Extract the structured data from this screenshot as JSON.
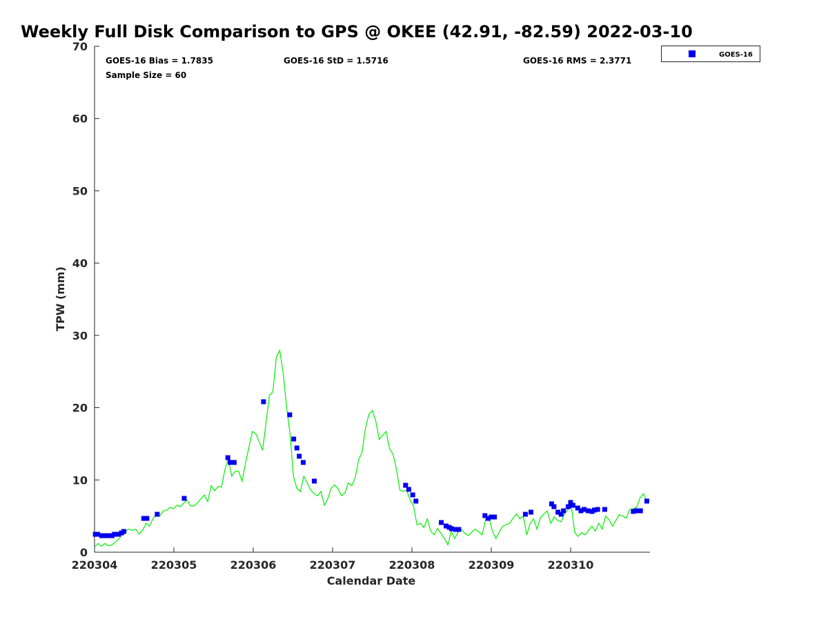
{
  "chart_data": {
    "type": "scatter",
    "title": "Weekly Full Disk Comparison to GPS @ OKEE (42.91, -82.59) 2022-03-10",
    "xlabel": "Calendar Date",
    "ylabel": "TPW (mm)",
    "xlim_days": [
      0,
      7
    ],
    "ylim": [
      0,
      70
    ],
    "x_tick_labels": [
      "220304",
      "220305",
      "220306",
      "220307",
      "220308",
      "220309",
      "220310"
    ],
    "y_ticks": [
      0,
      10,
      20,
      30,
      40,
      50,
      60,
      70
    ],
    "grid": false,
    "legend": {
      "position": "top-right",
      "entries": [
        "GOES-16"
      ]
    },
    "annotations": {
      "bias": "GOES-16 Bias = 1.7835",
      "std": "GOES-16 StD = 1.5716",
      "rms": "GOES-16 RMS = 2.3771",
      "sample": "Sample Size = 60"
    },
    "colors": {
      "goes": "#0000ee",
      "gps": "#00ee00"
    },
    "series": [
      {
        "name": "GOES-16",
        "type": "scatter",
        "x_days": [
          0.01,
          0.04,
          0.09,
          0.13,
          0.17,
          0.22,
          0.25,
          0.3,
          0.34,
          0.37,
          0.62,
          0.66,
          0.79,
          1.13,
          1.68,
          1.71,
          1.76,
          2.13,
          2.46,
          2.51,
          2.55,
          2.58,
          2.63,
          2.77,
          3.92,
          3.96,
          4.01,
          4.05,
          4.37,
          4.43,
          4.47,
          4.5,
          4.55,
          4.59,
          4.92,
          4.96,
          5.0,
          5.04,
          5.43,
          5.5,
          5.76,
          5.79,
          5.84,
          5.88,
          5.91,
          5.97,
          6.0,
          6.03,
          6.09,
          6.13,
          6.17,
          6.22,
          6.27,
          6.3,
          6.34,
          6.43,
          6.79,
          6.83,
          6.88,
          6.96
        ],
        "values": [
          2.48,
          2.48,
          2.29,
          2.29,
          2.29,
          2.29,
          2.48,
          2.48,
          2.67,
          2.87,
          4.68,
          4.68,
          5.25,
          7.45,
          13.08,
          12.42,
          12.42,
          20.82,
          19.01,
          15.66,
          14.42,
          13.28,
          12.42,
          9.84,
          9.26,
          8.69,
          7.93,
          7.07,
          4.11,
          3.63,
          3.44,
          3.25,
          3.15,
          3.15,
          5.06,
          4.68,
          4.87,
          4.87,
          5.25,
          5.54,
          6.69,
          6.3,
          5.54,
          5.25,
          5.73,
          6.3,
          6.88,
          6.49,
          6.11,
          5.73,
          5.92,
          5.73,
          5.64,
          5.83,
          5.92,
          5.92,
          5.64,
          5.73,
          5.73,
          7.07
        ]
      },
      {
        "name": "GPS",
        "type": "line",
        "x_start_days": 0,
        "x_end_days": 6.96,
        "values": [
          0.7,
          1.2,
          0.8,
          1.2,
          0.9,
          1.0,
          1.4,
          1.8,
          2.4,
          2.9,
          3.2,
          3.0,
          3.2,
          2.5,
          3.0,
          4.0,
          3.6,
          4.6,
          5.3,
          5.0,
          5.7,
          5.8,
          6.2,
          6.0,
          6.5,
          6.3,
          6.8,
          7.2,
          6.4,
          6.4,
          6.8,
          7.4,
          7.9,
          7.0,
          9.2,
          8.5,
          9.1,
          9.0,
          11.4,
          12.9,
          10.5,
          11.2,
          11.2,
          9.8,
          12.3,
          14.5,
          16.7,
          16.4,
          15.3,
          14.1,
          18.0,
          21.7,
          22.2,
          27.0,
          27.9,
          24.8,
          20.1,
          16.3,
          10.5,
          8.8,
          8.4,
          10.5,
          9.6,
          8.6,
          8.1,
          7.8,
          8.4,
          6.5,
          7.4,
          8.9,
          9.3,
          8.8,
          7.8,
          8.2,
          9.6,
          9.2,
          10.3,
          12.8,
          13.8,
          17.2,
          19.1,
          19.6,
          18.1,
          15.6,
          16.2,
          16.7,
          14.3,
          13.6,
          11.5,
          8.6,
          8.4,
          8.6,
          7.2,
          6.4,
          3.8,
          4.0,
          3.4,
          4.6,
          2.9,
          2.4,
          3.3,
          2.6,
          1.9,
          1.0,
          2.9,
          1.9,
          2.8,
          3.1,
          2.6,
          2.3,
          2.8,
          3.2,
          2.8,
          2.4,
          4.5,
          4.8,
          2.9,
          1.9,
          2.8,
          3.6,
          3.8,
          4.0,
          4.7,
          5.3,
          4.6,
          5.0,
          2.4,
          4.0,
          4.6,
          3.2,
          4.8,
          5.3,
          5.7,
          4.0,
          4.9,
          4.4,
          4.2,
          5.3,
          5.9,
          6.4,
          2.7,
          2.2,
          2.7,
          2.4,
          3.0,
          3.6,
          2.9,
          4.0,
          3.2,
          5.0,
          4.5,
          3.6,
          4.4,
          5.2,
          5.0,
          4.7,
          5.9,
          6.0,
          6.2,
          7.5,
          8.1,
          7.2
        ]
      }
    ]
  }
}
